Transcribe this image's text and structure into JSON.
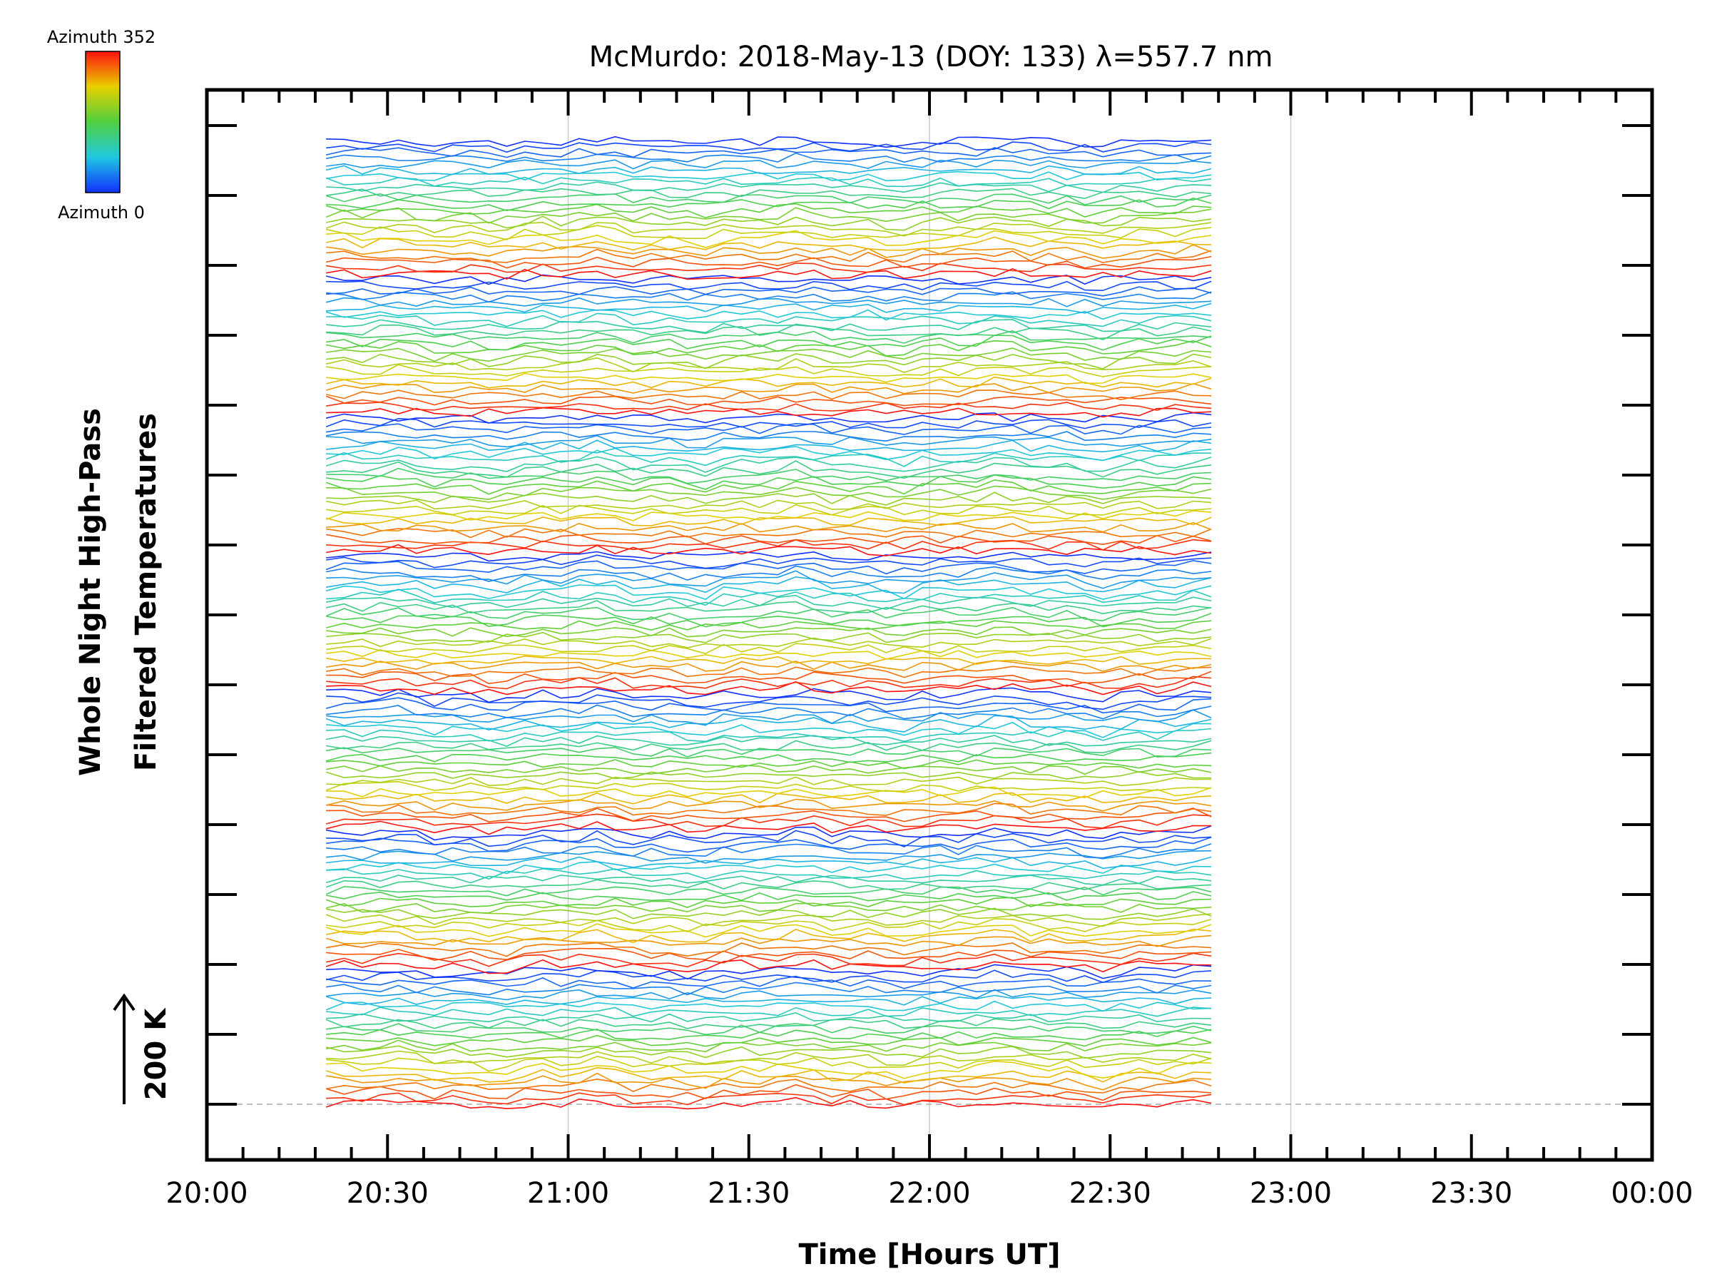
{
  "chart_data": {
    "type": "line",
    "title": "McMurdo: 2018-May-13 (DOY: 133) λ=557.7 nm",
    "xlabel": "Time [Hours UT]",
    "ylabel": [
      "Whole Night High-Pass",
      "Filtered Temperatures"
    ],
    "x_ticks": [
      "20:00",
      "20:30",
      "21:00",
      "21:30",
      "22:00",
      "22:30",
      "23:00",
      "23:30",
      "00:00"
    ],
    "x_range_hours": [
      20.0,
      24.0
    ],
    "x_vgrid_hours": [
      21.0,
      22.0,
      23.0
    ],
    "series_x_range_hours": [
      20.33,
      22.78
    ],
    "scale_marker": "200 K",
    "colorbar": {
      "top_label": "Azimuth 352",
      "bottom_label": "Azimuth 0",
      "colormap": "rainbow blue-to-red"
    },
    "azimuth_groups": 7,
    "azimuths_per_group": 24,
    "total_series": 168,
    "y_major_ticks": 15,
    "grid": false
  }
}
